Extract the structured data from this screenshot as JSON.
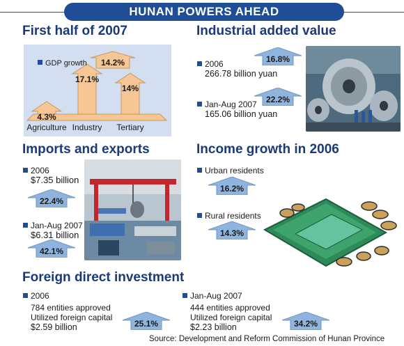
{
  "banner": {
    "title": "HUNAN POWERS AHEAD"
  },
  "first_half": {
    "title": "First half of 2007"
  },
  "industrial": {
    "title": "Industrial added value",
    "items": [
      {
        "year": "2006",
        "value": "266.78 billion yuan",
        "growth": "16.8%"
      },
      {
        "year": "Jan-Aug 2007",
        "value": "165.06 billion yuan",
        "growth": "22.2%"
      }
    ]
  },
  "imports": {
    "title": "Imports and exports",
    "items": [
      {
        "year": "2006",
        "value": "$7.35 billion",
        "growth": "22.4%"
      },
      {
        "year": "Jan-Aug 2007",
        "value": "$6.31 billion",
        "growth": "42.1%"
      }
    ]
  },
  "income": {
    "title": "Income growth in 2006",
    "items": [
      {
        "label": "Urban residents",
        "growth": "16.2%"
      },
      {
        "label": "Rural residents",
        "growth": "14.3%"
      }
    ]
  },
  "fdi": {
    "title": "Foreign direct investment",
    "items": [
      {
        "year": "2006",
        "entities": "784 entities approved",
        "capital_label": "Utilized foreign capital",
        "capital": "$2.59 billion",
        "growth": "25.1%"
      },
      {
        "year": "Jan-Aug 2007",
        "entities": "444 entities approved",
        "capital_label": "Utilized foreign capital",
        "capital": "$2.23 billion",
        "growth": "34.2%"
      }
    ]
  },
  "source": "Source: Development and Reform Commission of Hunan Province",
  "colors": {
    "arrow_fill": "#8fb5de",
    "arrow_stroke": "#6e95c4",
    "bar_fill": "#f6c694",
    "bar_stroke": "#c89860",
    "panel_bg": "#d3def0",
    "title": "#1a3a7a",
    "banner": "#1f4e96"
  },
  "chart_data": {
    "type": "bar",
    "legend": "GDP growth",
    "categories": [
      "Agriculture",
      "Industry",
      "Tertiary"
    ],
    "values": [
      4.3,
      17.1,
      14.0
    ],
    "value_labels": [
      "4.3%",
      "17.1%",
      "14%"
    ],
    "overall_gdp_growth": "14.2%"
  }
}
